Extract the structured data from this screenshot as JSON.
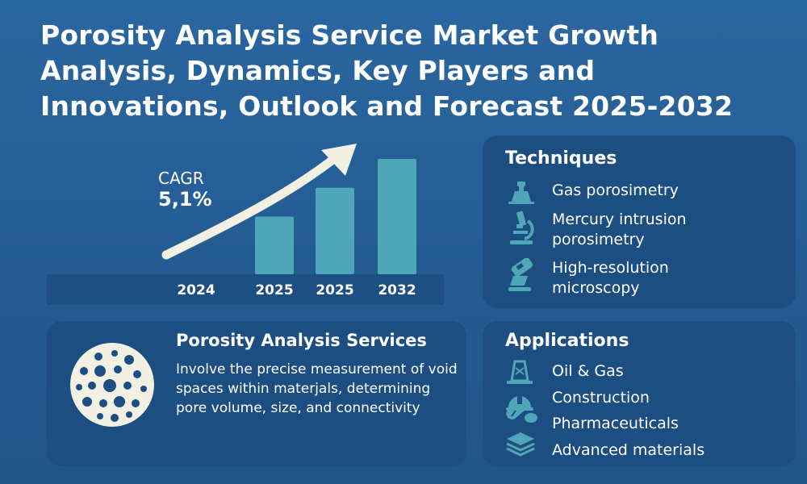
{
  "header": {
    "title_lines": [
      "Porosity Analysis Service Market Growth",
      "Analysis, Dynamics, Key Players and",
      "Innovations, Outlook and Forecast 2025-2032"
    ]
  },
  "cagr": {
    "label": "CAGR",
    "value": "5,1%"
  },
  "chart_data": {
    "type": "bar",
    "categories": [
      "2024",
      "2025",
      "2025",
      "2032"
    ],
    "values": [
      null,
      40,
      60,
      80
    ],
    "title": "",
    "xlabel": "",
    "ylabel": "",
    "grid": false,
    "colors": {
      "bar": "#4fa6b6",
      "arrow": "#f2efe3",
      "axis_band": "#1e4f82"
    }
  },
  "techniques": {
    "title": "Techniques",
    "items": [
      {
        "label": "Gas porosimetry",
        "icon": "gas-cylinder-icon"
      },
      {
        "label": "Mercury intrusion porosimetry",
        "line1": "Mercury intrusion",
        "line2": "porosimetry",
        "icon": "microscope-icon"
      },
      {
        "label": "High-resolution microscopy",
        "line1": "High-resolution",
        "line2": "microscopy",
        "icon": "sample-slide-icon"
      }
    ]
  },
  "applications": {
    "title": "Applications",
    "items": [
      {
        "label": "Oil & Gas",
        "icon": "oil-rig-icon"
      },
      {
        "label": "Construction",
        "icon": "helmet-icon"
      },
      {
        "label": "Pharmaceuticals",
        "icon": "pill-icon"
      },
      {
        "label": "Advanced materials",
        "icon": "layers-icon"
      }
    ]
  },
  "services": {
    "title": "Porosity Analysis Services",
    "description": "Involve the precise measurement of void spaces within materjals, determining pore volume, size, and connectivity",
    "icon": "porous-disc-icon"
  },
  "colors": {
    "background": "#245c93",
    "panel": "#1d4e82",
    "accent": "#4fa6b6",
    "cream": "#f2efe3"
  }
}
